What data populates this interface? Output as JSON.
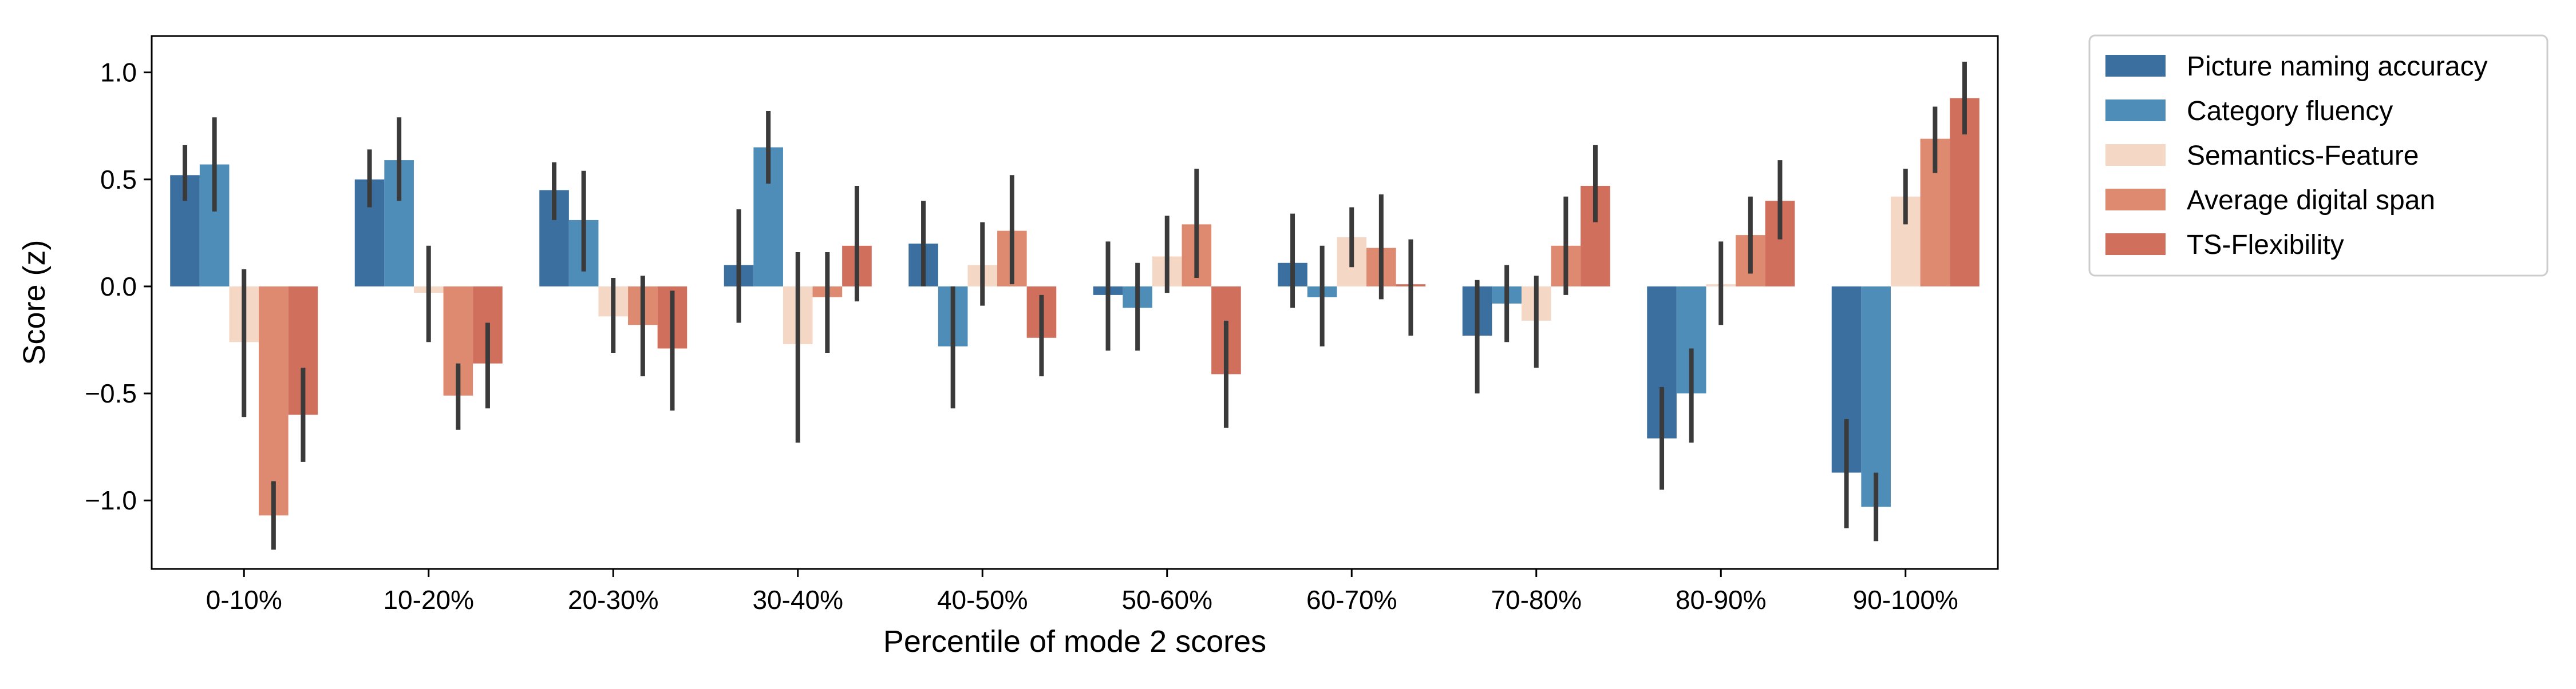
{
  "chart_data": {
    "type": "bar",
    "title": "",
    "xlabel": "Percentile of mode 2 scores",
    "ylabel": "Score (z)",
    "ylim": [
      -1.32,
      1.17
    ],
    "yticks": [
      -1.0,
      -0.5,
      0.0,
      0.5,
      1.0
    ],
    "ytick_labels": [
      "−1.0",
      "−0.5",
      "0.0",
      "0.5",
      "1.0"
    ],
    "categories": [
      "0-10%",
      "10-20%",
      "20-30%",
      "30-40%",
      "40-50%",
      "50-60%",
      "60-70%",
      "70-80%",
      "80-90%",
      "90-100%"
    ],
    "grid": false,
    "legend_position": "outside-top-right",
    "error_bars": true,
    "series": [
      {
        "name": "Picture naming accuracy",
        "color": "#3a6f9f",
        "values": [
          0.52,
          0.5,
          0.45,
          0.1,
          0.2,
          -0.04,
          0.11,
          -0.23,
          -0.71,
          -0.87
        ],
        "err_low": [
          0.4,
          0.37,
          0.31,
          -0.17,
          0.0,
          -0.3,
          -0.1,
          -0.5,
          -0.95,
          -1.13
        ],
        "err_high": [
          0.66,
          0.64,
          0.58,
          0.36,
          0.4,
          0.21,
          0.34,
          0.03,
          -0.47,
          -0.62
        ]
      },
      {
        "name": "Category fluency",
        "color": "#4d8db8",
        "values": [
          0.57,
          0.59,
          0.31,
          0.65,
          -0.28,
          -0.1,
          -0.05,
          -0.08,
          -0.5,
          -1.03
        ],
        "err_low": [
          0.35,
          0.4,
          0.07,
          0.48,
          -0.57,
          -0.3,
          -0.28,
          -0.26,
          -0.73,
          -1.19
        ],
        "err_high": [
          0.79,
          0.79,
          0.54,
          0.82,
          0.0,
          0.11,
          0.19,
          0.1,
          -0.29,
          -0.87
        ]
      },
      {
        "name": "Semantics-Feature",
        "color": "#f4d7c4",
        "values": [
          -0.26,
          -0.03,
          -0.14,
          -0.27,
          0.1,
          0.14,
          0.23,
          -0.16,
          0.01,
          0.42
        ],
        "err_low": [
          -0.61,
          -0.26,
          -0.31,
          -0.73,
          -0.09,
          -0.03,
          0.09,
          -0.38,
          -0.18,
          0.29
        ],
        "err_high": [
          0.08,
          0.19,
          0.04,
          0.16,
          0.3,
          0.33,
          0.37,
          0.05,
          0.21,
          0.55
        ]
      },
      {
        "name": "Average digital span",
        "color": "#de8a70",
        "values": [
          -1.07,
          -0.51,
          -0.18,
          -0.05,
          0.26,
          0.29,
          0.18,
          0.19,
          0.24,
          0.69
        ],
        "err_low": [
          -1.23,
          -0.67,
          -0.42,
          -0.31,
          0.01,
          0.04,
          -0.06,
          -0.04,
          0.06,
          0.53
        ],
        "err_high": [
          -0.91,
          -0.36,
          0.05,
          0.16,
          0.52,
          0.55,
          0.43,
          0.42,
          0.42,
          0.84
        ]
      },
      {
        "name": "TS-Flexibility",
        "color": "#cf6f5c",
        "values": [
          -0.6,
          -0.36,
          -0.29,
          0.19,
          -0.24,
          -0.41,
          0.01,
          0.47,
          0.4,
          0.88
        ],
        "err_low": [
          -0.82,
          -0.57,
          -0.58,
          -0.07,
          -0.42,
          -0.66,
          -0.23,
          0.3,
          0.22,
          0.71
        ],
        "err_high": [
          -0.38,
          -0.17,
          -0.02,
          0.47,
          -0.04,
          -0.16,
          0.22,
          0.66,
          0.59,
          1.05
        ]
      }
    ]
  }
}
